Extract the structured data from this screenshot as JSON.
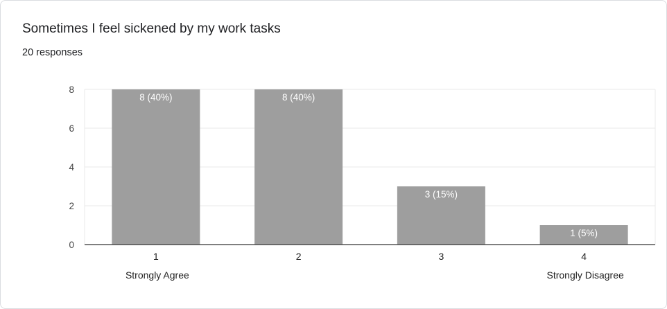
{
  "question": {
    "title": "Sometimes I feel sickened by my work tasks",
    "responses": "20 responses"
  },
  "chart_data": {
    "type": "bar",
    "categories": [
      "1",
      "2",
      "3",
      "4"
    ],
    "values": [
      8,
      8,
      3,
      1
    ],
    "data_labels": [
      "8 (40%)",
      "8 (40%)",
      "3 (15%)",
      "1 (5%)"
    ],
    "category_notes": [
      "Strongly Agree",
      "",
      "",
      "Strongly Disagree"
    ],
    "ylim": [
      0,
      8
    ],
    "yticks": [
      0,
      2,
      4,
      6,
      8
    ],
    "grid": true,
    "bar_color": "#9e9e9e",
    "grid_color": "#e8e8e8",
    "axis_color": "#333333"
  }
}
